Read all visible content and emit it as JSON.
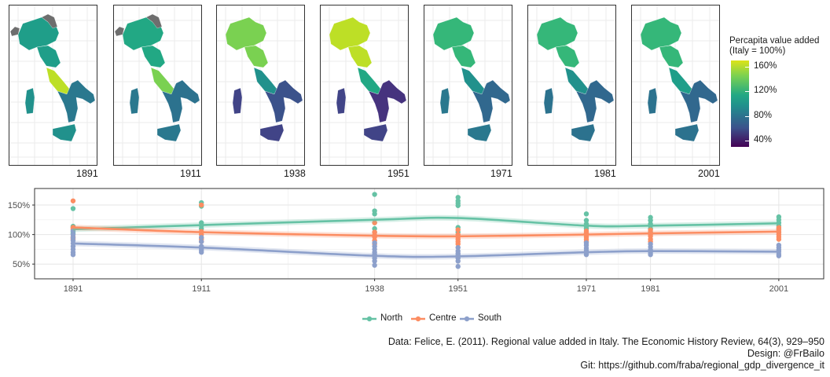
{
  "maps": {
    "years": [
      "1891",
      "1911",
      "1938",
      "1951",
      "1971",
      "1981",
      "2001"
    ],
    "legend_title": "Percapita value added\n(Italy = 100%)",
    "legend_ticks": [
      "160%",
      "120%",
      "80%",
      "40%"
    ],
    "legend_tick_values": [
      160,
      120,
      80,
      40
    ],
    "legend_range": [
      30,
      170
    ],
    "panels": [
      {
        "year": "1891",
        "north": "#1f9e89",
        "centre": "#bddf26",
        "south": "#2a788e",
        "islands": "#21918c",
        "nodata": true
      },
      {
        "year": "1911",
        "north": "#22a884",
        "centre": "#7ad151",
        "south": "#2c728e",
        "islands": "#2a788e",
        "nodata": true
      },
      {
        "year": "1938",
        "north": "#7ad151",
        "centre": "#21918c",
        "south": "#3b528b",
        "islands": "#414487",
        "nodata": false
      },
      {
        "year": "1951",
        "north": "#bddf26",
        "centre": "#22a884",
        "south": "#46337e",
        "islands": "#414487",
        "nodata": false
      },
      {
        "year": "1971",
        "north": "#35b779",
        "centre": "#21918c",
        "south": "#31688e",
        "islands": "#2a788e",
        "nodata": false
      },
      {
        "year": "1981",
        "north": "#35b779",
        "centre": "#21918c",
        "south": "#31688e",
        "islands": "#2c728e",
        "nodata": false
      },
      {
        "year": "2001",
        "north": "#35b779",
        "centre": "#1f9e89",
        "south": "#31688e",
        "islands": "#2c728e",
        "nodata": false
      }
    ]
  },
  "chart_data": {
    "type": "scatter",
    "x": [
      1891,
      1911,
      1938,
      1951,
      1971,
      1981,
      2001
    ],
    "x_tick_labels": [
      "1891",
      "1911",
      "1938",
      "1951",
      "1971",
      "1981",
      "2001"
    ],
    "y_ticks": [
      50,
      100,
      150
    ],
    "y_tick_labels": [
      "50%",
      "100%",
      "150%"
    ],
    "ylim": [
      25,
      178
    ],
    "grid": true,
    "legend_position": "bottom",
    "series": [
      {
        "name": "North",
        "color": "#66c2a5",
        "trend": [
          109,
          116,
          125,
          128,
          115,
          115,
          119
        ],
        "points": [
          [
            144,
            114,
            112,
            108,
            105,
            102
          ],
          [
            154,
            148,
            120,
            115,
            110,
            104
          ],
          [
            168,
            140,
            135,
            120,
            110,
            104
          ],
          [
            163,
            157,
            153,
            149,
            112,
            104
          ],
          [
            135,
            124,
            118,
            114,
            110,
            102
          ],
          [
            129,
            124,
            118,
            115,
            110,
            104
          ],
          [
            130,
            125,
            120,
            115,
            110,
            104
          ]
        ]
      },
      {
        "name": "Centre",
        "color": "#fc8d62",
        "trend": [
          112,
          104,
          98,
          97,
          100,
          102,
          105
        ],
        "points": [
          [
            157,
            112,
            110,
            96,
            94,
            92
          ],
          [
            150,
            105,
            100,
            95,
            92,
            88
          ],
          [
            120,
            104,
            99,
            96,
            90,
            84
          ],
          [
            108,
            100,
            96,
            92,
            88,
            84
          ],
          [
            106,
            102,
            100,
            96,
            92,
            88
          ],
          [
            108,
            103,
            100,
            97,
            92,
            88
          ],
          [
            112,
            108,
            104,
            100,
            96,
            92
          ]
        ]
      },
      {
        "name": "South",
        "color": "#8da0cb",
        "trend": [
          85,
          78,
          64,
          63,
          70,
          72,
          71
        ],
        "points": [
          [
            106,
            100,
            95,
            90,
            85,
            80,
            75,
            70,
            66
          ],
          [
            95,
            88,
            80,
            76,
            73,
            70
          ],
          [
            86,
            80,
            75,
            70,
            66,
            60,
            55,
            48
          ],
          [
            78,
            72,
            68,
            65,
            60,
            55,
            46
          ],
          [
            86,
            82,
            77,
            73,
            69,
            66
          ],
          [
            84,
            79,
            74,
            72,
            69,
            66
          ],
          [
            82,
            78,
            74,
            71,
            67,
            64
          ]
        ]
      }
    ]
  },
  "caption": {
    "line1": "Data: Felice, E. (2011). Regional value added in Italy. The Economic History Review, 64(3), 929–950",
    "line2": "Design: @FrBailo",
    "line3": "Git: https://github.com/fraba/regional_gdp_divergence_it"
  }
}
